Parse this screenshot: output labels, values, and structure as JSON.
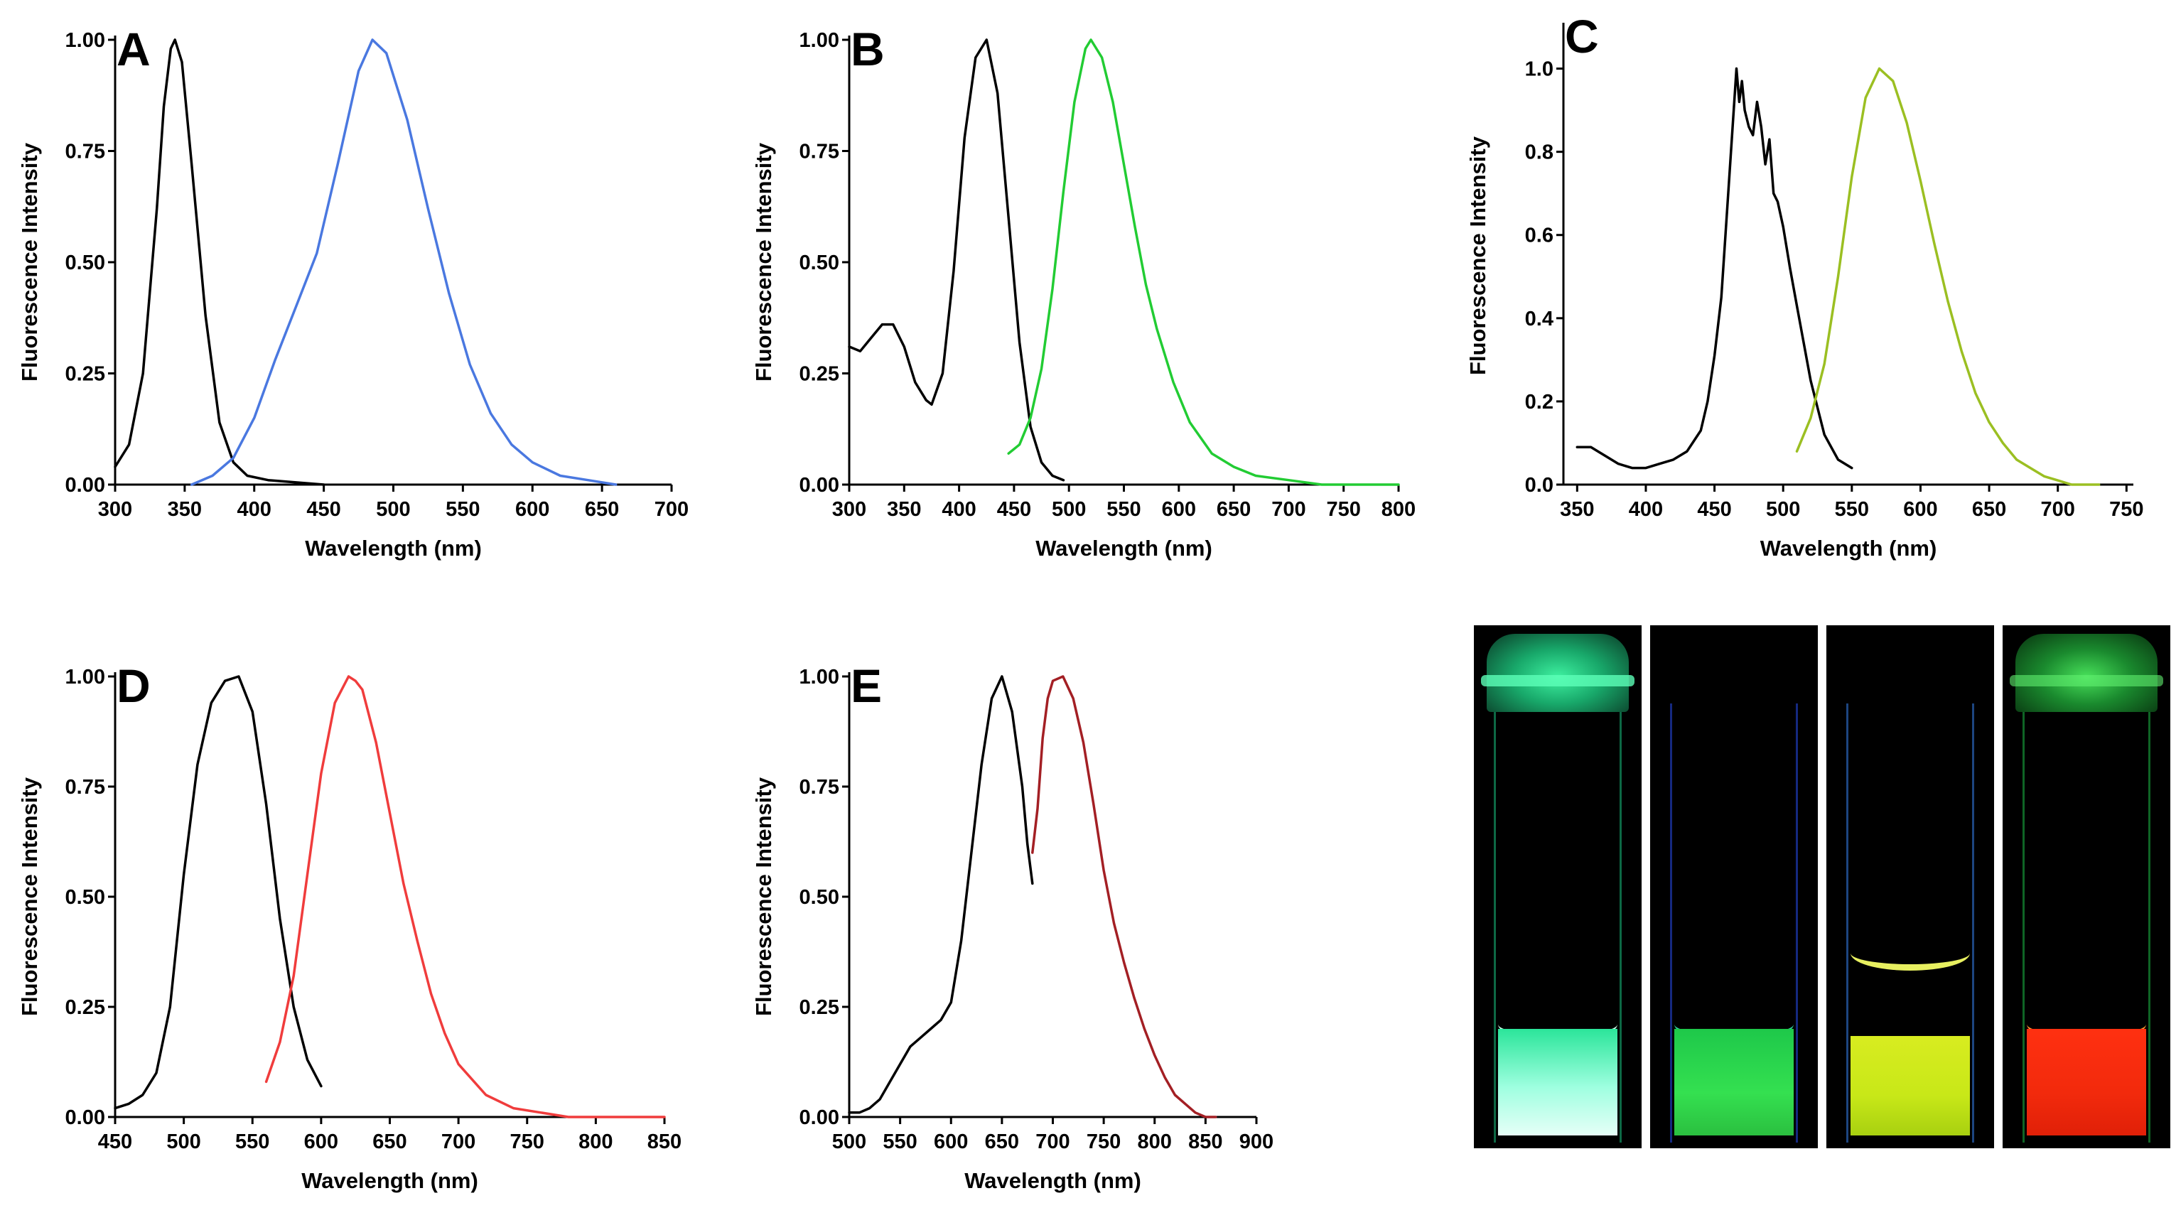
{
  "chart_data": [
    {
      "panel": "A",
      "type": "line",
      "xlabel": "Wavelength (nm)",
      "ylabel": "Fluorescence Intensity",
      "xlim": [
        300,
        700
      ],
      "ylim": [
        0,
        1
      ],
      "xticks": [
        "300",
        "350",
        "400",
        "450",
        "500",
        "550",
        "600",
        "650",
        "700"
      ],
      "yticks": [
        "0.00",
        "0.25",
        "0.50",
        "0.75",
        "1.00"
      ],
      "series": [
        {
          "color": "#000000",
          "x": [
            300,
            310,
            320,
            330,
            335,
            340,
            343,
            348,
            355,
            365,
            375,
            385,
            395,
            410,
            430,
            450
          ],
          "y": [
            0.04,
            0.09,
            0.25,
            0.62,
            0.85,
            0.98,
            1.0,
            0.95,
            0.72,
            0.38,
            0.14,
            0.05,
            0.02,
            0.01,
            0.005,
            0.0
          ]
        },
        {
          "color": "#4a78e0",
          "x": [
            355,
            370,
            385,
            400,
            415,
            430,
            445,
            460,
            475,
            485,
            495,
            510,
            525,
            540,
            555,
            570,
            585,
            600,
            620,
            640,
            660
          ],
          "y": [
            0.0,
            0.02,
            0.06,
            0.15,
            0.28,
            0.4,
            0.52,
            0.72,
            0.93,
            1.0,
            0.97,
            0.82,
            0.62,
            0.43,
            0.27,
            0.16,
            0.09,
            0.05,
            0.02,
            0.01,
            0.0
          ]
        }
      ]
    },
    {
      "panel": "B",
      "type": "line",
      "xlabel": "Wavelength (nm)",
      "ylabel": "Fluorescence Intensity",
      "xlim": [
        300,
        800
      ],
      "ylim": [
        0,
        1
      ],
      "xticks": [
        "300",
        "350",
        "400",
        "450",
        "500",
        "550",
        "600",
        "650",
        "700",
        "750",
        "800"
      ],
      "yticks": [
        "0.00",
        "0.25",
        "0.50",
        "0.75",
        "1.00"
      ],
      "series": [
        {
          "color": "#000000",
          "x": [
            300,
            310,
            320,
            330,
            340,
            350,
            360,
            370,
            375,
            385,
            395,
            405,
            415,
            425,
            435,
            445,
            455,
            465,
            475,
            485,
            495
          ],
          "y": [
            0.31,
            0.3,
            0.33,
            0.36,
            0.36,
            0.31,
            0.23,
            0.19,
            0.18,
            0.25,
            0.48,
            0.78,
            0.96,
            1.0,
            0.88,
            0.6,
            0.32,
            0.13,
            0.05,
            0.02,
            0.01
          ]
        },
        {
          "color": "#22cc33",
          "x": [
            445,
            455,
            465,
            475,
            485,
            495,
            505,
            515,
            520,
            530,
            540,
            550,
            560,
            570,
            580,
            595,
            610,
            630,
            650,
            670,
            700,
            730,
            760,
            800
          ],
          "y": [
            0.07,
            0.09,
            0.15,
            0.26,
            0.44,
            0.66,
            0.86,
            0.98,
            1.0,
            0.96,
            0.86,
            0.72,
            0.58,
            0.45,
            0.35,
            0.23,
            0.14,
            0.07,
            0.04,
            0.02,
            0.01,
            0.0,
            0.0,
            0.0
          ]
        }
      ]
    },
    {
      "panel": "C",
      "type": "line",
      "xlabel": "Wavelength (nm)",
      "ylabel": "Fluorescence Intensity",
      "xlim": [
        340,
        755
      ],
      "ylim": [
        0,
        1.1
      ],
      "xticks": [
        "350",
        "400",
        "450",
        "500",
        "550",
        "600",
        "650",
        "700",
        "750"
      ],
      "yticks": [
        "0.0",
        "0.2",
        "0.4",
        "0.6",
        "0.8",
        "1.0"
      ],
      "series": [
        {
          "color": "#000000",
          "x": [
            350,
            360,
            370,
            380,
            390,
            400,
            410,
            420,
            430,
            440,
            445,
            450,
            455,
            460,
            463,
            466,
            468,
            470,
            472,
            475,
            478,
            481,
            484,
            487,
            490,
            493,
            496,
            500,
            505,
            510,
            515,
            520,
            530,
            540,
            550
          ],
          "y": [
            0.09,
            0.09,
            0.07,
            0.05,
            0.04,
            0.04,
            0.05,
            0.06,
            0.08,
            0.13,
            0.2,
            0.31,
            0.45,
            0.7,
            0.85,
            1.0,
            0.92,
            0.97,
            0.9,
            0.86,
            0.84,
            0.92,
            0.86,
            0.77,
            0.83,
            0.7,
            0.68,
            0.62,
            0.52,
            0.43,
            0.34,
            0.25,
            0.12,
            0.06,
            0.04
          ]
        },
        {
          "color": "#9bbf22",
          "x": [
            510,
            520,
            530,
            540,
            550,
            560,
            570,
            580,
            590,
            600,
            610,
            620,
            630,
            640,
            650,
            660,
            670,
            680,
            690,
            700,
            710,
            720,
            730
          ],
          "y": [
            0.08,
            0.16,
            0.29,
            0.5,
            0.74,
            0.93,
            1.0,
            0.97,
            0.87,
            0.73,
            0.58,
            0.44,
            0.32,
            0.22,
            0.15,
            0.1,
            0.06,
            0.04,
            0.02,
            0.01,
            0.0,
            0.0,
            0.0
          ]
        }
      ]
    },
    {
      "panel": "D",
      "type": "line",
      "xlabel": "Wavelength (nm)",
      "ylabel": "Fluorescence Intensity",
      "xlim": [
        450,
        850
      ],
      "ylim": [
        0,
        1
      ],
      "xticks": [
        "450",
        "500",
        "550",
        "600",
        "650",
        "700",
        "750",
        "800",
        "850"
      ],
      "yticks": [
        "0.00",
        "0.25",
        "0.50",
        "0.75",
        "1.00"
      ],
      "series": [
        {
          "color": "#000000",
          "x": [
            450,
            460,
            470,
            480,
            490,
            500,
            510,
            520,
            530,
            540,
            550,
            560,
            570,
            580,
            590,
            600
          ],
          "y": [
            0.02,
            0.03,
            0.05,
            0.1,
            0.25,
            0.55,
            0.8,
            0.94,
            0.99,
            1.0,
            0.92,
            0.71,
            0.45,
            0.25,
            0.13,
            0.07
          ]
        },
        {
          "color": "#f03c3c",
          "x": [
            560,
            570,
            580,
            590,
            600,
            610,
            620,
            625,
            630,
            640,
            650,
            660,
            670,
            680,
            690,
            700,
            720,
            740,
            760,
            780,
            800,
            850
          ],
          "y": [
            0.08,
            0.17,
            0.32,
            0.55,
            0.78,
            0.94,
            1.0,
            0.99,
            0.97,
            0.85,
            0.69,
            0.53,
            0.4,
            0.28,
            0.19,
            0.12,
            0.05,
            0.02,
            0.01,
            0.0,
            0.0,
            0.0
          ]
        }
      ]
    },
    {
      "panel": "E",
      "type": "line",
      "xlabel": "Wavelength (nm)",
      "ylabel": "Fluorescence Intensity",
      "xlim": [
        500,
        900
      ],
      "ylim": [
        0,
        1
      ],
      "xticks": [
        "500",
        "550",
        "600",
        "650",
        "700",
        "750",
        "800",
        "850",
        "900"
      ],
      "yticks": [
        "0.00",
        "0.25",
        "0.50",
        "0.75",
        "1.00"
      ],
      "series": [
        {
          "color": "#000000",
          "x": [
            500,
            510,
            520,
            530,
            540,
            550,
            560,
            570,
            580,
            590,
            600,
            610,
            620,
            630,
            640,
            650,
            660,
            670,
            675,
            680
          ],
          "y": [
            0.01,
            0.01,
            0.02,
            0.04,
            0.08,
            0.12,
            0.16,
            0.18,
            0.2,
            0.22,
            0.26,
            0.4,
            0.6,
            0.8,
            0.95,
            1.0,
            0.92,
            0.75,
            0.62,
            0.53
          ]
        },
        {
          "color": "#a31f24",
          "x": [
            680,
            685,
            690,
            695,
            700,
            710,
            720,
            730,
            740,
            750,
            760,
            770,
            780,
            790,
            800,
            810,
            820,
            830,
            840,
            850,
            860
          ],
          "y": [
            0.6,
            0.7,
            0.86,
            0.95,
            0.99,
            1.0,
            0.95,
            0.85,
            0.71,
            0.56,
            0.44,
            0.35,
            0.27,
            0.2,
            0.14,
            0.09,
            0.05,
            0.03,
            0.01,
            0.0,
            0.0
          ]
        }
      ]
    }
  ]
}
